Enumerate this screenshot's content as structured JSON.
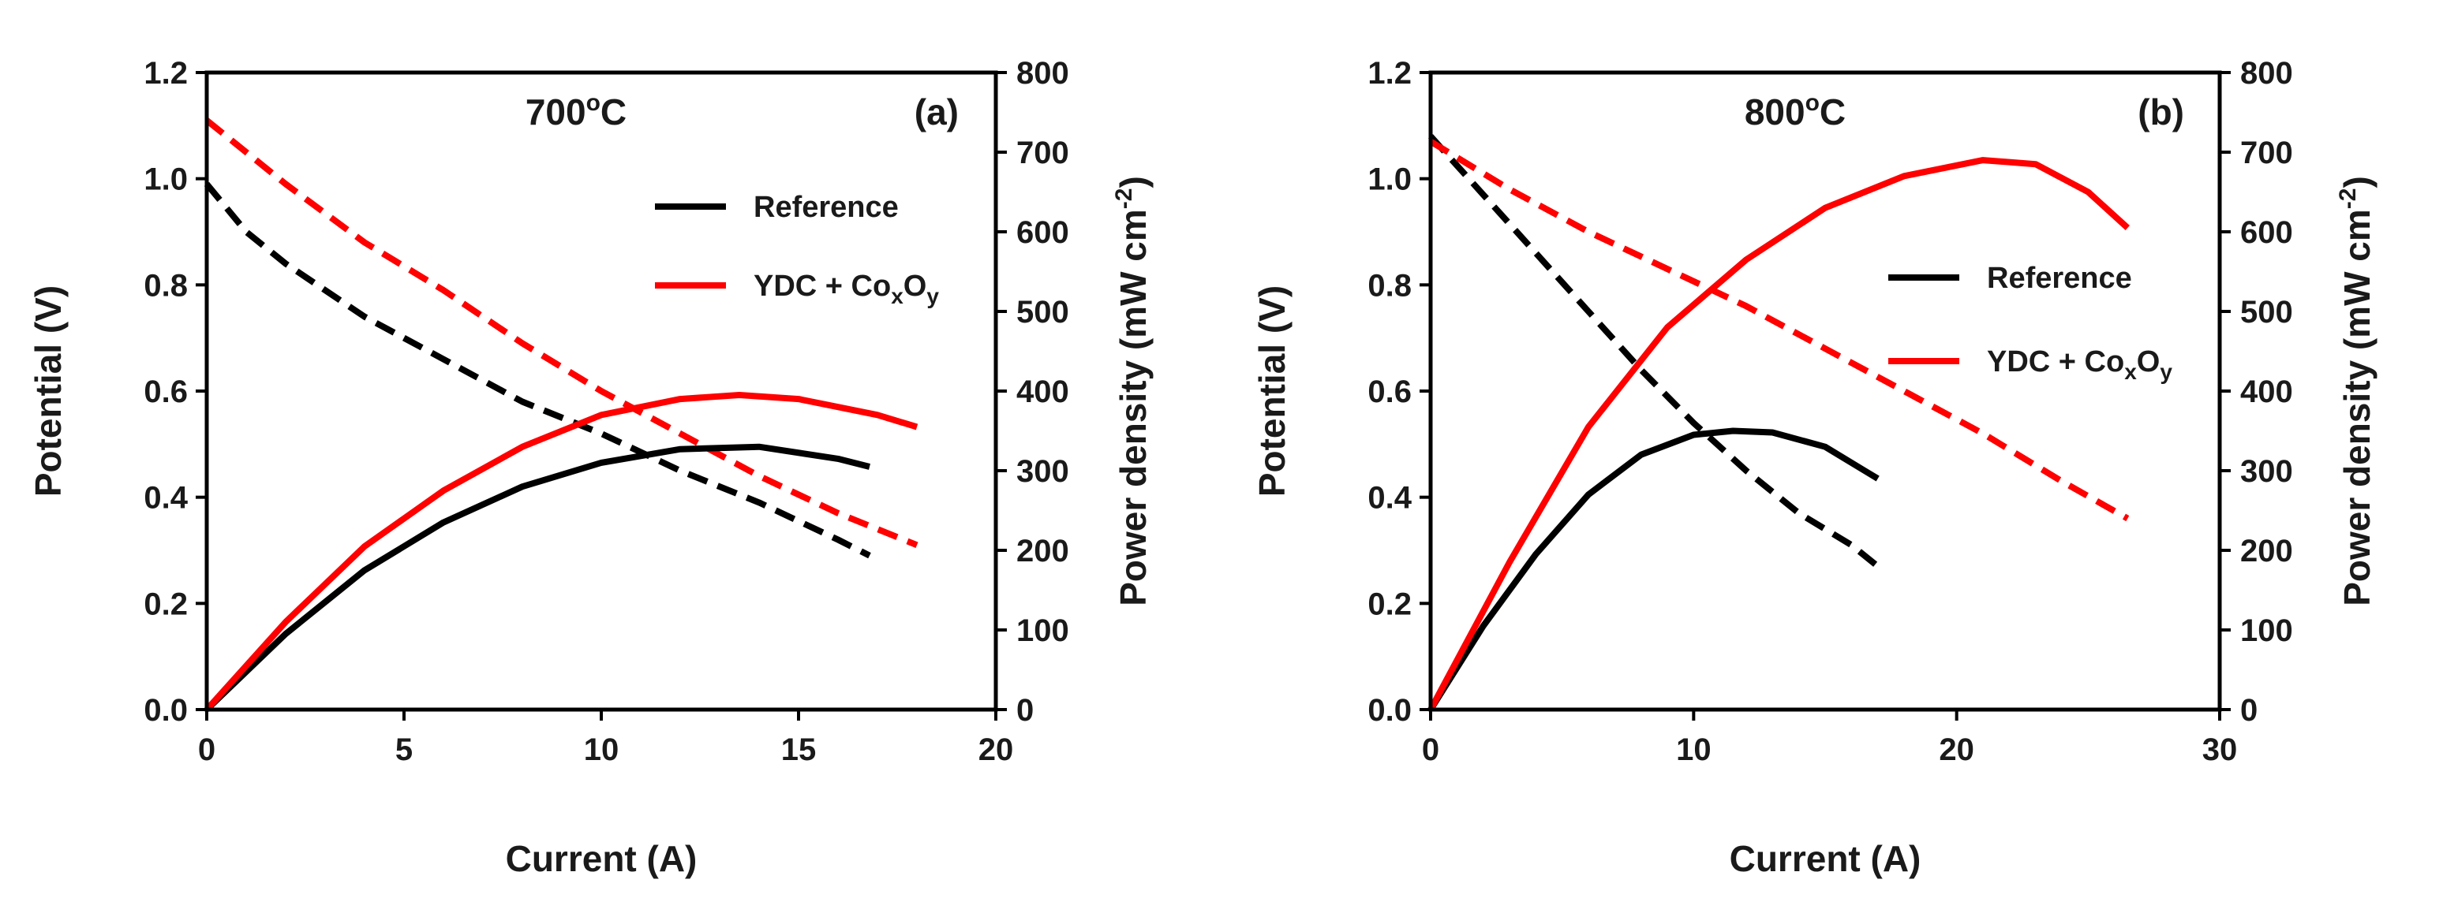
{
  "chart_data": [
    {
      "type": "line",
      "panel_label": "(a)",
      "temperature": {
        "value": "700",
        "superscript": "o",
        "unit": "C"
      },
      "xlabel": "Current (A)",
      "ylabel_left": "Potential (V)",
      "ylabel_right": {
        "text": "Power density (mW cm",
        "superscript": "-2",
        "close": ")"
      },
      "xlim": [
        0,
        20
      ],
      "ylim_left": [
        0,
        1.2
      ],
      "ylim_right": [
        0,
        800
      ],
      "xticks": [
        "0",
        "5",
        "10",
        "15",
        "20"
      ],
      "yticks_left": [
        "0.0",
        "0.2",
        "0.4",
        "0.6",
        "0.8",
        "1.0",
        "1.2"
      ],
      "yticks_right": [
        "0",
        "100",
        "200",
        "300",
        "400",
        "500",
        "600",
        "700",
        "800"
      ],
      "legend": [
        {
          "label": "Reference",
          "color": "#000000"
        },
        {
          "label": "YDC + Co",
          "sub1": "x",
          "mid": "O",
          "sub2": "y",
          "color": "#ff0000"
        }
      ],
      "series": [
        {
          "name": "Reference",
          "quantity": "Potential (V)",
          "axis": "left",
          "style": "dashed",
          "color": "#000000",
          "x": [
            0,
            1,
            2,
            4,
            6,
            8,
            10,
            12,
            14,
            16,
            16.8
          ],
          "y": [
            0.99,
            0.9,
            0.84,
            0.74,
            0.66,
            0.58,
            0.52,
            0.45,
            0.39,
            0.32,
            0.29
          ]
        },
        {
          "name": "YDC + CoxOy",
          "quantity": "Potential (V)",
          "axis": "left",
          "style": "dashed",
          "color": "#ff0000",
          "x": [
            0,
            2,
            4,
            6,
            8,
            10,
            12,
            14,
            16,
            18
          ],
          "y": [
            1.11,
            0.99,
            0.88,
            0.79,
            0.69,
            0.6,
            0.52,
            0.44,
            0.37,
            0.31
          ]
        },
        {
          "name": "Reference",
          "quantity": "Power density (mW cm-2)",
          "axis": "right",
          "style": "solid",
          "color": "#000000",
          "x": [
            0,
            2,
            4,
            6,
            8,
            10,
            12,
            14,
            16,
            16.8
          ],
          "y": [
            0,
            95,
            175,
            235,
            280,
            310,
            327,
            330,
            315,
            305
          ]
        },
        {
          "name": "YDC + CoxOy",
          "quantity": "Power density (mW cm-2)",
          "axis": "right",
          "style": "solid",
          "color": "#ff0000",
          "x": [
            0,
            2,
            4,
            6,
            8,
            10,
            12,
            13.5,
            15,
            17,
            18
          ],
          "y": [
            0,
            110,
            205,
            275,
            330,
            370,
            390,
            395,
            390,
            370,
            355
          ]
        }
      ]
    },
    {
      "type": "line",
      "panel_label": "(b)",
      "temperature": {
        "value": "800",
        "superscript": "o",
        "unit": "C"
      },
      "xlabel": "Current (A)",
      "ylabel_left": "Potential (V)",
      "ylabel_right": {
        "text": "Power density (mW cm",
        "superscript": "-2",
        "close": ")"
      },
      "xlim": [
        0,
        30
      ],
      "ylim_left": [
        0,
        1.2
      ],
      "ylim_right": [
        0,
        800
      ],
      "xticks": [
        "0",
        "10",
        "20",
        "30"
      ],
      "yticks_left": [
        "0.0",
        "0.2",
        "0.4",
        "0.6",
        "0.8",
        "1.0",
        "1.2"
      ],
      "yticks_right": [
        "0",
        "100",
        "200",
        "300",
        "400",
        "500",
        "600",
        "700",
        "800"
      ],
      "legend": [
        {
          "label": "Reference",
          "color": "#000000"
        },
        {
          "label": "YDC + Co",
          "sub1": "x",
          "mid": "O",
          "sub2": "y",
          "color": "#ff0000"
        }
      ],
      "series": [
        {
          "name": "Reference",
          "quantity": "Potential (V)",
          "axis": "left",
          "style": "dashed",
          "color": "#000000",
          "x": [
            0,
            2,
            4,
            6,
            8,
            10,
            12,
            14,
            16,
            17
          ],
          "y": [
            1.08,
            0.97,
            0.86,
            0.75,
            0.64,
            0.54,
            0.45,
            0.37,
            0.31,
            0.27
          ]
        },
        {
          "name": "YDC + CoxOy",
          "quantity": "Potential (V)",
          "axis": "left",
          "style": "dashed",
          "color": "#ff0000",
          "x": [
            0,
            3,
            6,
            9,
            12,
            15,
            18,
            21,
            24,
            26.5
          ],
          "y": [
            1.07,
            0.98,
            0.9,
            0.83,
            0.76,
            0.68,
            0.6,
            0.52,
            0.43,
            0.36
          ]
        },
        {
          "name": "Reference",
          "quantity": "Power density (mW cm-2)",
          "axis": "right",
          "style": "solid",
          "color": "#000000",
          "x": [
            0,
            2,
            4,
            6,
            8,
            10,
            11.5,
            13,
            15,
            16.5,
            17
          ],
          "y": [
            0,
            105,
            195,
            270,
            320,
            345,
            350,
            348,
            330,
            300,
            290
          ]
        },
        {
          "name": "YDC + CoxOy",
          "quantity": "Power density (mW cm-2)",
          "axis": "right",
          "style": "solid",
          "color": "#ff0000",
          "x": [
            0,
            3,
            6,
            9,
            12,
            15,
            18,
            21,
            23,
            25,
            26.5
          ],
          "y": [
            0,
            185,
            355,
            480,
            565,
            630,
            670,
            690,
            685,
            650,
            605
          ]
        }
      ]
    }
  ]
}
